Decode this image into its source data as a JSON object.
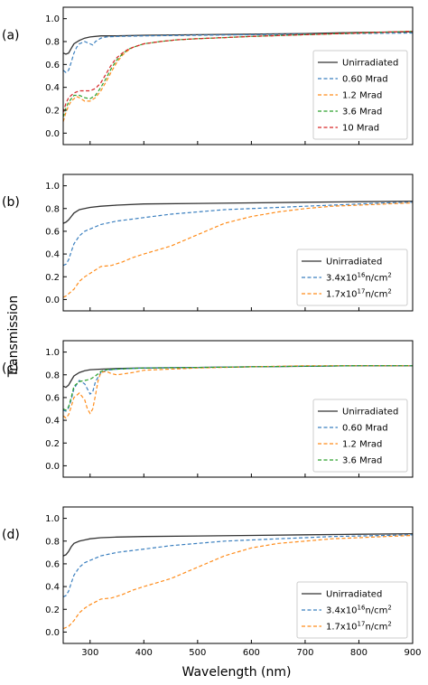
{
  "figure": {
    "ylabel": "Transmission",
    "xlabel": "Wavelength (nm)"
  },
  "colors": {
    "black": "#333333",
    "blue": "#3a7fbf",
    "orange": "#ff8c1a",
    "green": "#2ca02c",
    "red": "#d62728"
  },
  "chart_data": [
    {
      "type": "line",
      "panel_label": "(a)",
      "xlim": [
        250,
        900
      ],
      "ylim": [
        -0.1,
        1.1
      ],
      "xticks": [
        300,
        400,
        500,
        600,
        700,
        800,
        900
      ],
      "yticks": [
        "0.0",
        "0.2",
        "0.4",
        "0.6",
        "0.8",
        "1.0"
      ],
      "show_x_tick_labels": false,
      "legend": "bottom-right",
      "series": [
        {
          "name": "Unirradiated",
          "color": "black",
          "dash": "solid",
          "x": [
            250,
            255,
            260,
            265,
            270,
            280,
            290,
            300,
            320,
            350,
            400,
            500,
            600,
            700,
            800,
            900
          ],
          "y": [
            0.7,
            0.69,
            0.7,
            0.74,
            0.78,
            0.81,
            0.83,
            0.84,
            0.85,
            0.85,
            0.855,
            0.86,
            0.865,
            0.87,
            0.88,
            0.885
          ]
        },
        {
          "name": "0.60 Mrad",
          "color": "blue",
          "dash": "dashed",
          "x": [
            250,
            255,
            260,
            265,
            270,
            275,
            280,
            290,
            300,
            305,
            310,
            320,
            330,
            350,
            400,
            500,
            600,
            700,
            800,
            900
          ],
          "y": [
            0.55,
            0.53,
            0.55,
            0.62,
            0.7,
            0.75,
            0.78,
            0.8,
            0.78,
            0.77,
            0.8,
            0.83,
            0.84,
            0.845,
            0.85,
            0.855,
            0.86,
            0.865,
            0.87,
            0.875
          ]
        },
        {
          "name": "1.2 Mrad",
          "color": "orange",
          "dash": "dashed",
          "x": [
            250,
            255,
            260,
            265,
            270,
            275,
            280,
            290,
            300,
            310,
            320,
            330,
            340,
            350,
            360,
            370,
            380,
            400,
            430,
            460,
            500,
            550,
            600,
            700,
            800,
            900
          ],
          "y": [
            0.1,
            0.18,
            0.24,
            0.28,
            0.3,
            0.32,
            0.31,
            0.28,
            0.28,
            0.31,
            0.37,
            0.45,
            0.54,
            0.62,
            0.68,
            0.72,
            0.75,
            0.78,
            0.8,
            0.815,
            0.825,
            0.835,
            0.845,
            0.86,
            0.875,
            0.89
          ]
        },
        {
          "name": "3.6 Mrad",
          "color": "green",
          "dash": "dashed",
          "x": [
            250,
            255,
            260,
            265,
            270,
            280,
            290,
            300,
            310,
            320,
            330,
            340,
            350,
            360,
            370,
            380,
            400,
            430,
            460,
            500,
            550,
            600,
            700,
            800,
            900
          ],
          "y": [
            0.14,
            0.22,
            0.27,
            0.3,
            0.33,
            0.33,
            0.31,
            0.3,
            0.33,
            0.4,
            0.48,
            0.57,
            0.64,
            0.69,
            0.73,
            0.75,
            0.78,
            0.8,
            0.815,
            0.825,
            0.835,
            0.845,
            0.86,
            0.875,
            0.89
          ]
        },
        {
          "name": "10 Mrad",
          "color": "red",
          "dash": "dashed",
          "x": [
            250,
            255,
            260,
            265,
            270,
            280,
            290,
            300,
            310,
            320,
            330,
            340,
            350,
            360,
            370,
            380,
            400,
            430,
            460,
            500,
            550,
            600,
            700,
            800,
            900
          ],
          "y": [
            0.18,
            0.26,
            0.31,
            0.33,
            0.35,
            0.37,
            0.37,
            0.37,
            0.39,
            0.44,
            0.52,
            0.6,
            0.66,
            0.7,
            0.73,
            0.75,
            0.78,
            0.8,
            0.815,
            0.825,
            0.835,
            0.845,
            0.86,
            0.875,
            0.89
          ]
        }
      ]
    },
    {
      "type": "line",
      "panel_label": "(b)",
      "xlim": [
        250,
        900
      ],
      "ylim": [
        -0.1,
        1.1
      ],
      "xticks": [
        300,
        400,
        500,
        600,
        700,
        800,
        900
      ],
      "yticks": [
        "0.0",
        "0.2",
        "0.4",
        "0.6",
        "0.8",
        "1.0"
      ],
      "show_x_tick_labels": false,
      "legend": "bottom-right",
      "series": [
        {
          "name": "Unirradiated",
          "color": "black",
          "dash": "solid",
          "x": [
            250,
            255,
            260,
            265,
            270,
            280,
            290,
            300,
            320,
            350,
            400,
            500,
            600,
            700,
            800,
            900
          ],
          "y": [
            0.67,
            0.68,
            0.7,
            0.73,
            0.76,
            0.79,
            0.8,
            0.81,
            0.82,
            0.83,
            0.84,
            0.845,
            0.85,
            0.855,
            0.86,
            0.865
          ]
        },
        {
          "name": "3.4x10",
          "sup": "16",
          "unit": "n/cm",
          "unit_sup": "2",
          "color": "blue",
          "dash": "dashed",
          "x": [
            250,
            255,
            260,
            265,
            270,
            280,
            290,
            300,
            320,
            350,
            400,
            450,
            500,
            550,
            600,
            650,
            700,
            750,
            800,
            850,
            900
          ],
          "y": [
            0.3,
            0.31,
            0.35,
            0.42,
            0.49,
            0.56,
            0.6,
            0.62,
            0.66,
            0.69,
            0.72,
            0.75,
            0.77,
            0.79,
            0.8,
            0.81,
            0.82,
            0.83,
            0.84,
            0.85,
            0.855
          ]
        },
        {
          "name": "1.7x10",
          "sup": "17",
          "unit": "n/cm",
          "unit_sup": "2",
          "color": "orange",
          "dash": "dashed",
          "x": [
            250,
            255,
            260,
            270,
            280,
            290,
            300,
            320,
            340,
            360,
            380,
            400,
            450,
            500,
            550,
            600,
            650,
            700,
            750,
            800,
            850,
            900
          ],
          "y": [
            0.02,
            0.03,
            0.05,
            0.09,
            0.16,
            0.2,
            0.23,
            0.29,
            0.3,
            0.33,
            0.37,
            0.4,
            0.47,
            0.57,
            0.67,
            0.73,
            0.77,
            0.8,
            0.82,
            0.83,
            0.84,
            0.85
          ]
        }
      ]
    },
    {
      "type": "line",
      "panel_label": "(c)",
      "xlim": [
        250,
        900
      ],
      "ylim": [
        -0.1,
        1.1
      ],
      "xticks": [
        300,
        400,
        500,
        600,
        700,
        800,
        900
      ],
      "yticks": [
        "0.0",
        "0.2",
        "0.4",
        "0.6",
        "0.8",
        "1.0"
      ],
      "show_x_tick_labels": false,
      "legend": "bottom-right",
      "series": [
        {
          "name": "Unirradiated",
          "color": "black",
          "dash": "solid",
          "x": [
            250,
            255,
            260,
            265,
            270,
            280,
            290,
            300,
            320,
            350,
            400,
            500,
            600,
            700,
            800,
            900
          ],
          "y": [
            0.7,
            0.69,
            0.71,
            0.75,
            0.79,
            0.82,
            0.835,
            0.845,
            0.85,
            0.855,
            0.86,
            0.865,
            0.87,
            0.875,
            0.88,
            0.88
          ]
        },
        {
          "name": "0.60 Mrad",
          "color": "blue",
          "dash": "dashed",
          "x": [
            250,
            255,
            260,
            265,
            270,
            280,
            290,
            300,
            305,
            310,
            320,
            330,
            350,
            400,
            500,
            600,
            700,
            800,
            900
          ],
          "y": [
            0.49,
            0.48,
            0.51,
            0.58,
            0.68,
            0.75,
            0.72,
            0.63,
            0.65,
            0.74,
            0.82,
            0.84,
            0.85,
            0.86,
            0.865,
            0.87,
            0.875,
            0.88,
            0.88
          ]
        },
        {
          "name": "1.2 Mrad",
          "color": "orange",
          "dash": "dashed",
          "x": [
            250,
            255,
            260,
            265,
            270,
            280,
            290,
            295,
            300,
            305,
            310,
            315,
            320,
            330,
            340,
            350,
            380,
            400,
            500,
            600,
            700,
            800,
            900
          ],
          "y": [
            0.44,
            0.42,
            0.45,
            0.52,
            0.6,
            0.64,
            0.58,
            0.5,
            0.46,
            0.5,
            0.62,
            0.75,
            0.82,
            0.83,
            0.81,
            0.8,
            0.82,
            0.84,
            0.86,
            0.87,
            0.88,
            0.88,
            0.88
          ]
        },
        {
          "name": "3.6 Mrad",
          "color": "green",
          "dash": "dashed",
          "x": [
            250,
            255,
            260,
            265,
            270,
            280,
            290,
            300,
            310,
            320,
            330,
            350,
            400,
            500,
            600,
            700,
            800,
            900
          ],
          "y": [
            0.5,
            0.49,
            0.52,
            0.6,
            0.7,
            0.74,
            0.75,
            0.76,
            0.79,
            0.83,
            0.845,
            0.85,
            0.86,
            0.865,
            0.87,
            0.875,
            0.88,
            0.88
          ]
        }
      ]
    },
    {
      "type": "line",
      "panel_label": "(d)",
      "xlim": [
        250,
        900
      ],
      "ylim": [
        -0.1,
        1.1
      ],
      "xticks": [
        300,
        400,
        500,
        600,
        700,
        800,
        900
      ],
      "yticks": [
        "0.0",
        "0.2",
        "0.4",
        "0.6",
        "0.8",
        "1.0"
      ],
      "xtick_labels": [
        "300",
        "400",
        "500",
        "600",
        "700",
        "800",
        "900"
      ],
      "show_x_tick_labels": true,
      "legend": "bottom-right",
      "series": [
        {
          "name": "Unirradiated",
          "color": "black",
          "dash": "solid",
          "x": [
            250,
            255,
            260,
            265,
            270,
            280,
            290,
            300,
            320,
            350,
            400,
            500,
            600,
            700,
            800,
            900
          ],
          "y": [
            0.67,
            0.68,
            0.71,
            0.75,
            0.78,
            0.8,
            0.81,
            0.82,
            0.83,
            0.835,
            0.84,
            0.845,
            0.85,
            0.855,
            0.86,
            0.865
          ]
        },
        {
          "name": "3.4x10",
          "sup": "16",
          "unit": "n/cm",
          "unit_sup": "2",
          "color": "blue",
          "dash": "dashed",
          "x": [
            250,
            255,
            260,
            265,
            270,
            280,
            290,
            300,
            320,
            350,
            400,
            450,
            500,
            550,
            600,
            650,
            700,
            750,
            800,
            850,
            900
          ],
          "y": [
            0.31,
            0.32,
            0.36,
            0.43,
            0.5,
            0.57,
            0.61,
            0.63,
            0.67,
            0.7,
            0.73,
            0.76,
            0.78,
            0.8,
            0.81,
            0.82,
            0.83,
            0.84,
            0.845,
            0.85,
            0.855
          ]
        },
        {
          "name": "1.7x10",
          "sup": "17",
          "unit": "n/cm",
          "unit_sup": "2",
          "color": "orange",
          "dash": "dashed",
          "x": [
            250,
            255,
            260,
            270,
            280,
            290,
            300,
            320,
            340,
            360,
            380,
            400,
            450,
            500,
            550,
            600,
            650,
            700,
            750,
            800,
            850,
            900
          ],
          "y": [
            0.03,
            0.04,
            0.05,
            0.1,
            0.17,
            0.21,
            0.24,
            0.29,
            0.3,
            0.33,
            0.37,
            0.4,
            0.47,
            0.57,
            0.67,
            0.74,
            0.78,
            0.8,
            0.82,
            0.83,
            0.84,
            0.85
          ]
        }
      ]
    }
  ]
}
